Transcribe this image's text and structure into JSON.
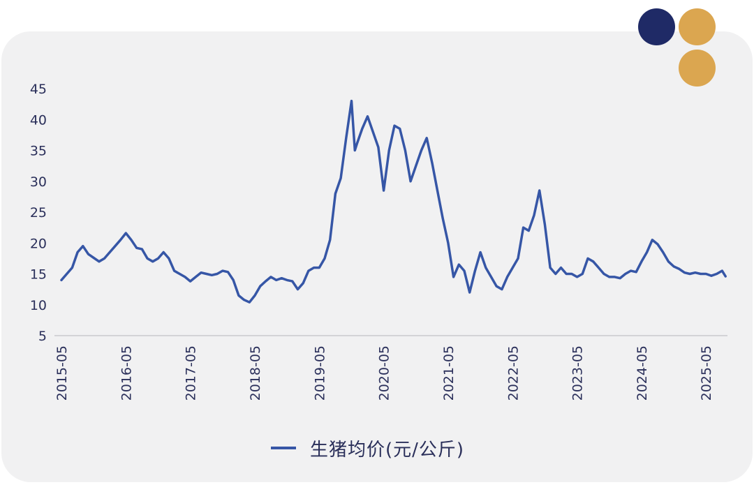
{
  "colors": {
    "card": "#f1f1f2",
    "line": "#3656a6",
    "text": "#2a2f5a",
    "axis": "#c9c9cc",
    "dot_navy": "#1f2a66",
    "dot_gold": "#dba650"
  },
  "chart_data": {
    "type": "line",
    "title": "",
    "xlabel": "",
    "ylabel": "",
    "ylim": [
      5,
      45
    ],
    "yticks": [
      5,
      10,
      15,
      20,
      25,
      30,
      35,
      40,
      45
    ],
    "xlim": [
      "2015-05",
      "2025-09"
    ],
    "xticks": [
      "2015-05",
      "2016-05",
      "2017-05",
      "2018-05",
      "2019-05",
      "2020-05",
      "2021-05",
      "2022-05",
      "2023-05",
      "2024-05",
      "2025-05"
    ],
    "grid": false,
    "legend_position": "bottom-center",
    "series": [
      {
        "name": "生猪均价(元/公斤)",
        "color": "#3656a6",
        "points": [
          [
            "2015-05-01",
            14.0
          ],
          [
            "2015-06-01",
            15.0
          ],
          [
            "2015-07-01",
            16.0
          ],
          [
            "2015-08-01",
            18.5
          ],
          [
            "2015-09-01",
            19.5
          ],
          [
            "2015-10-01",
            18.2
          ],
          [
            "2015-11-01",
            17.6
          ],
          [
            "2015-12-01",
            17.0
          ],
          [
            "2016-01-01",
            17.5
          ],
          [
            "2016-02-01",
            18.5
          ],
          [
            "2016-03-01",
            19.5
          ],
          [
            "2016-04-01",
            20.5
          ],
          [
            "2016-05-01",
            21.6
          ],
          [
            "2016-06-01",
            20.5
          ],
          [
            "2016-07-01",
            19.2
          ],
          [
            "2016-08-01",
            19.0
          ],
          [
            "2016-09-01",
            17.5
          ],
          [
            "2016-10-01",
            17.0
          ],
          [
            "2016-11-01",
            17.5
          ],
          [
            "2016-12-01",
            18.5
          ],
          [
            "2017-01-01",
            17.5
          ],
          [
            "2017-02-01",
            15.5
          ],
          [
            "2017-03-01",
            15.0
          ],
          [
            "2017-04-01",
            14.5
          ],
          [
            "2017-05-01",
            13.8
          ],
          [
            "2017-06-01",
            14.5
          ],
          [
            "2017-07-01",
            15.2
          ],
          [
            "2017-08-01",
            15.0
          ],
          [
            "2017-09-01",
            14.8
          ],
          [
            "2017-10-01",
            15.0
          ],
          [
            "2017-11-01",
            15.5
          ],
          [
            "2017-12-01",
            15.3
          ],
          [
            "2018-01-01",
            14.0
          ],
          [
            "2018-02-01",
            11.5
          ],
          [
            "2018-03-01",
            10.8
          ],
          [
            "2018-04-01",
            10.4
          ],
          [
            "2018-05-01",
            11.5
          ],
          [
            "2018-06-01",
            13.0
          ],
          [
            "2018-07-01",
            13.8
          ],
          [
            "2018-08-01",
            14.5
          ],
          [
            "2018-09-01",
            14.0
          ],
          [
            "2018-10-01",
            14.3
          ],
          [
            "2018-11-01",
            14.0
          ],
          [
            "2018-12-01",
            13.8
          ],
          [
            "2019-01-01",
            12.5
          ],
          [
            "2019-02-01",
            13.5
          ],
          [
            "2019-03-01",
            15.5
          ],
          [
            "2019-04-01",
            16.0
          ],
          [
            "2019-05-01",
            16.0
          ],
          [
            "2019-06-01",
            17.5
          ],
          [
            "2019-07-01",
            20.5
          ],
          [
            "2019-08-01",
            28.0
          ],
          [
            "2019-09-01",
            30.5
          ],
          [
            "2019-10-01",
            37.0
          ],
          [
            "2019-11-01",
            43.0
          ],
          [
            "2019-11-20",
            35.0
          ],
          [
            "2019-12-01",
            36.0
          ],
          [
            "2020-01-01",
            38.5
          ],
          [
            "2020-02-01",
            40.5
          ],
          [
            "2020-03-01",
            38.0
          ],
          [
            "2020-04-01",
            35.5
          ],
          [
            "2020-05-01",
            28.5
          ],
          [
            "2020-06-01",
            35.0
          ],
          [
            "2020-07-01",
            39.0
          ],
          [
            "2020-08-01",
            38.5
          ],
          [
            "2020-09-01",
            35.0
          ],
          [
            "2020-10-01",
            30.0
          ],
          [
            "2020-11-01",
            32.5
          ],
          [
            "2020-12-01",
            35.0
          ],
          [
            "2021-01-01",
            37.0
          ],
          [
            "2021-02-01",
            33.0
          ],
          [
            "2021-03-01",
            28.5
          ],
          [
            "2021-04-01",
            24.0
          ],
          [
            "2021-05-01",
            20.0
          ],
          [
            "2021-06-01",
            14.5
          ],
          [
            "2021-07-01",
            16.5
          ],
          [
            "2021-08-01",
            15.5
          ],
          [
            "2021-09-01",
            12.0
          ],
          [
            "2021-10-01",
            15.5
          ],
          [
            "2021-11-01",
            18.5
          ],
          [
            "2021-12-01",
            16.0
          ],
          [
            "2022-01-01",
            14.5
          ],
          [
            "2022-02-01",
            13.0
          ],
          [
            "2022-03-01",
            12.5
          ],
          [
            "2022-04-01",
            14.5
          ],
          [
            "2022-05-01",
            16.0
          ],
          [
            "2022-06-01",
            17.5
          ],
          [
            "2022-07-01",
            22.5
          ],
          [
            "2022-08-01",
            22.0
          ],
          [
            "2022-09-01",
            24.5
          ],
          [
            "2022-10-01",
            28.5
          ],
          [
            "2022-11-01",
            23.0
          ],
          [
            "2022-12-01",
            16.0
          ],
          [
            "2023-01-01",
            15.0
          ],
          [
            "2023-02-01",
            16.0
          ],
          [
            "2023-03-01",
            15.0
          ],
          [
            "2023-04-01",
            15.0
          ],
          [
            "2023-05-01",
            14.5
          ],
          [
            "2023-06-01",
            15.0
          ],
          [
            "2023-07-01",
            17.5
          ],
          [
            "2023-08-01",
            17.0
          ],
          [
            "2023-09-01",
            16.0
          ],
          [
            "2023-10-01",
            15.0
          ],
          [
            "2023-11-01",
            14.5
          ],
          [
            "2023-12-01",
            14.5
          ],
          [
            "2024-01-01",
            14.3
          ],
          [
            "2024-02-01",
            15.0
          ],
          [
            "2024-03-01",
            15.5
          ],
          [
            "2024-04-01",
            15.3
          ],
          [
            "2024-05-01",
            17.0
          ],
          [
            "2024-06-01",
            18.5
          ],
          [
            "2024-07-01",
            20.5
          ],
          [
            "2024-08-01",
            19.8
          ],
          [
            "2024-09-01",
            18.5
          ],
          [
            "2024-10-01",
            17.0
          ],
          [
            "2024-11-01",
            16.2
          ],
          [
            "2024-12-01",
            15.8
          ],
          [
            "2025-01-01",
            15.2
          ],
          [
            "2025-02-01",
            15.0
          ],
          [
            "2025-03-01",
            15.2
          ],
          [
            "2025-04-01",
            15.0
          ],
          [
            "2025-05-01",
            15.0
          ],
          [
            "2025-06-01",
            14.7
          ],
          [
            "2025-07-01",
            15.0
          ],
          [
            "2025-08-01",
            15.5
          ],
          [
            "2025-08-20",
            14.6
          ]
        ]
      }
    ]
  }
}
